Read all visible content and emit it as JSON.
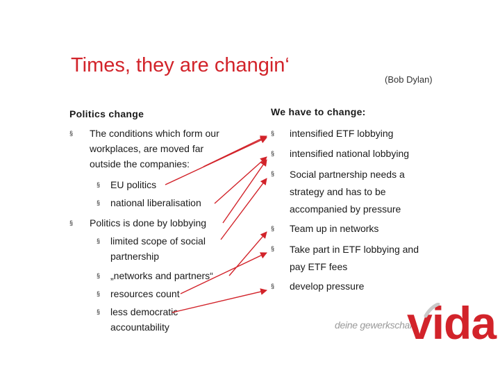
{
  "title": "Times, they are changin‘",
  "attribution": "(Bob Dylan)",
  "left": {
    "heading": "Politics change",
    "bullet": "§",
    "item1": {
      "lines": [
        "The conditions which form our",
        "workplaces, are moved far",
        "outside the companies:"
      ],
      "subs": [
        "EU politics",
        "national liberalisation"
      ]
    },
    "item2": {
      "text": "Politics is done by lobbying",
      "subs": [
        {
          "lines": [
            "limited scope of social",
            "partnership"
          ]
        },
        {
          "lines": [
            "„networks and partners“"
          ]
        },
        {
          "lines": [
            "resources count"
          ]
        },
        {
          "lines": [
            "less democratic",
            "accountability"
          ]
        }
      ]
    }
  },
  "right": {
    "heading": "We have to change:",
    "items": [
      {
        "lines": [
          "intensified ETF lobbying"
        ]
      },
      {
        "lines": [
          "intensified national lobbying"
        ]
      },
      {
        "lines": [
          "Social partnership needs a",
          "strategy and has to be",
          "accompanied by pressure"
        ]
      },
      {
        "lines": [
          "Team up in networks"
        ]
      },
      {
        "lines": [
          "Take part in ETF lobbying and",
          "pay ETF fees"
        ]
      },
      {
        "lines": [
          "develop pressure"
        ]
      }
    ]
  },
  "logo": {
    "tagline": "deine gewerkschaft",
    "word": "vida"
  },
  "colors": {
    "accent": "#d2232a",
    "text": "#1a1a1a",
    "logo_gray": "#9a9a9a"
  }
}
